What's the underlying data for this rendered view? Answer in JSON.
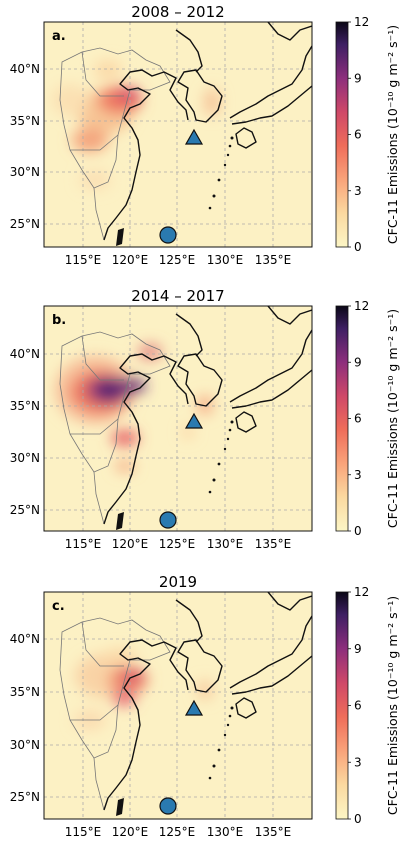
{
  "panels": [
    {
      "title": "2008 – 2012",
      "label": "a."
    },
    {
      "title": "2014 – 2017",
      "label": "b."
    },
    {
      "title": "2019",
      "label": "c."
    }
  ],
  "axes": {
    "lon_ticks": [
      "115°E",
      "120°E",
      "125°E",
      "130°E",
      "135°E"
    ],
    "lat_ticks": [
      "40°N",
      "35°N",
      "30°N",
      "25°N"
    ]
  },
  "colorbar": {
    "label": "CFC-11 Emissions (10⁻¹⁰ g m⁻² s⁻¹)",
    "ticks": [
      "12",
      "9",
      "6",
      "3",
      "0"
    ],
    "range": [
      0,
      12
    ],
    "colormap": "magma_r"
  },
  "sites": [
    {
      "marker": "triangle",
      "color": "#2a7ab0",
      "lon": 126.2,
      "lat": 33.3
    },
    {
      "marker": "circle",
      "color": "#2a7ab0",
      "lon": 124.0,
      "lat": 24.1
    }
  ],
  "colors": {
    "background": "#fcf1c4",
    "grid": "#aaaaaa",
    "outline": "#111111",
    "province": "#777777"
  }
}
